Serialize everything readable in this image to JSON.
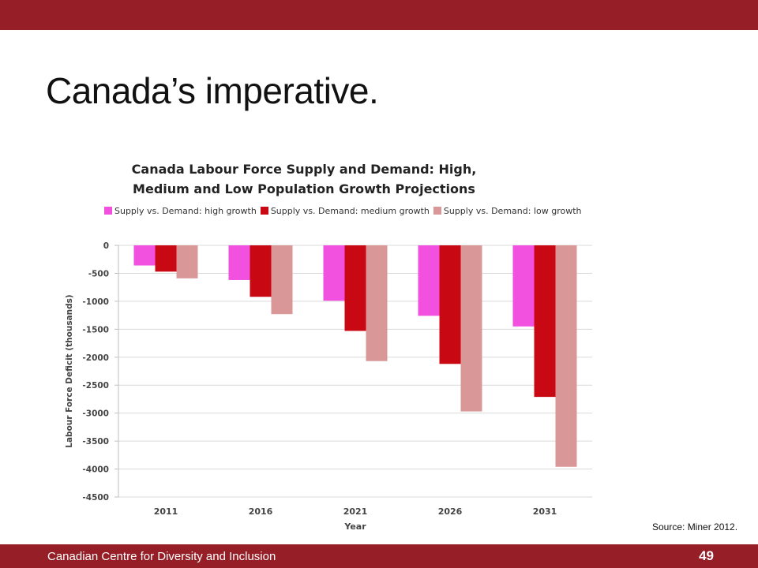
{
  "slide": {
    "title": "Canada’s imperative.",
    "source": "Source: Miner 2012.",
    "footer_org": "Canadian Centre for Diversity and Inclusion",
    "page_number": "49"
  },
  "colors": {
    "bar_band": "#961e26",
    "high_growth": "#f251e0",
    "medium_growth": "#c80812",
    "low_growth": "#d99797"
  },
  "chart_data": {
    "type": "bar",
    "title_lines": [
      "Canada Labour Force Supply and Demand: High,",
      "Medium and Low Population Growth Projections"
    ],
    "xlabel": "Year",
    "ylabel": "Labour Force Deficit (thousands)",
    "categories": [
      "2011",
      "2016",
      "2021",
      "2026",
      "2031"
    ],
    "ylim": [
      -4500,
      0
    ],
    "yticks": [
      0,
      -500,
      -1000,
      -1500,
      -2000,
      -2500,
      -3000,
      -3500,
      -4000,
      -4500
    ],
    "grid": true,
    "legend_position": "top",
    "series": [
      {
        "name": "Supply vs. Demand: high growth",
        "color": "#f251e0",
        "values": [
          -360,
          -620,
          -990,
          -1260,
          -1450
        ]
      },
      {
        "name": "Supply vs. Demand: medium growth",
        "color": "#c80812",
        "values": [
          -470,
          -920,
          -1530,
          -2120,
          -2710
        ]
      },
      {
        "name": "Supply vs. Demand: low growth",
        "color": "#d99797",
        "values": [
          -590,
          -1230,
          -2070,
          -2970,
          -3960
        ]
      }
    ]
  }
}
